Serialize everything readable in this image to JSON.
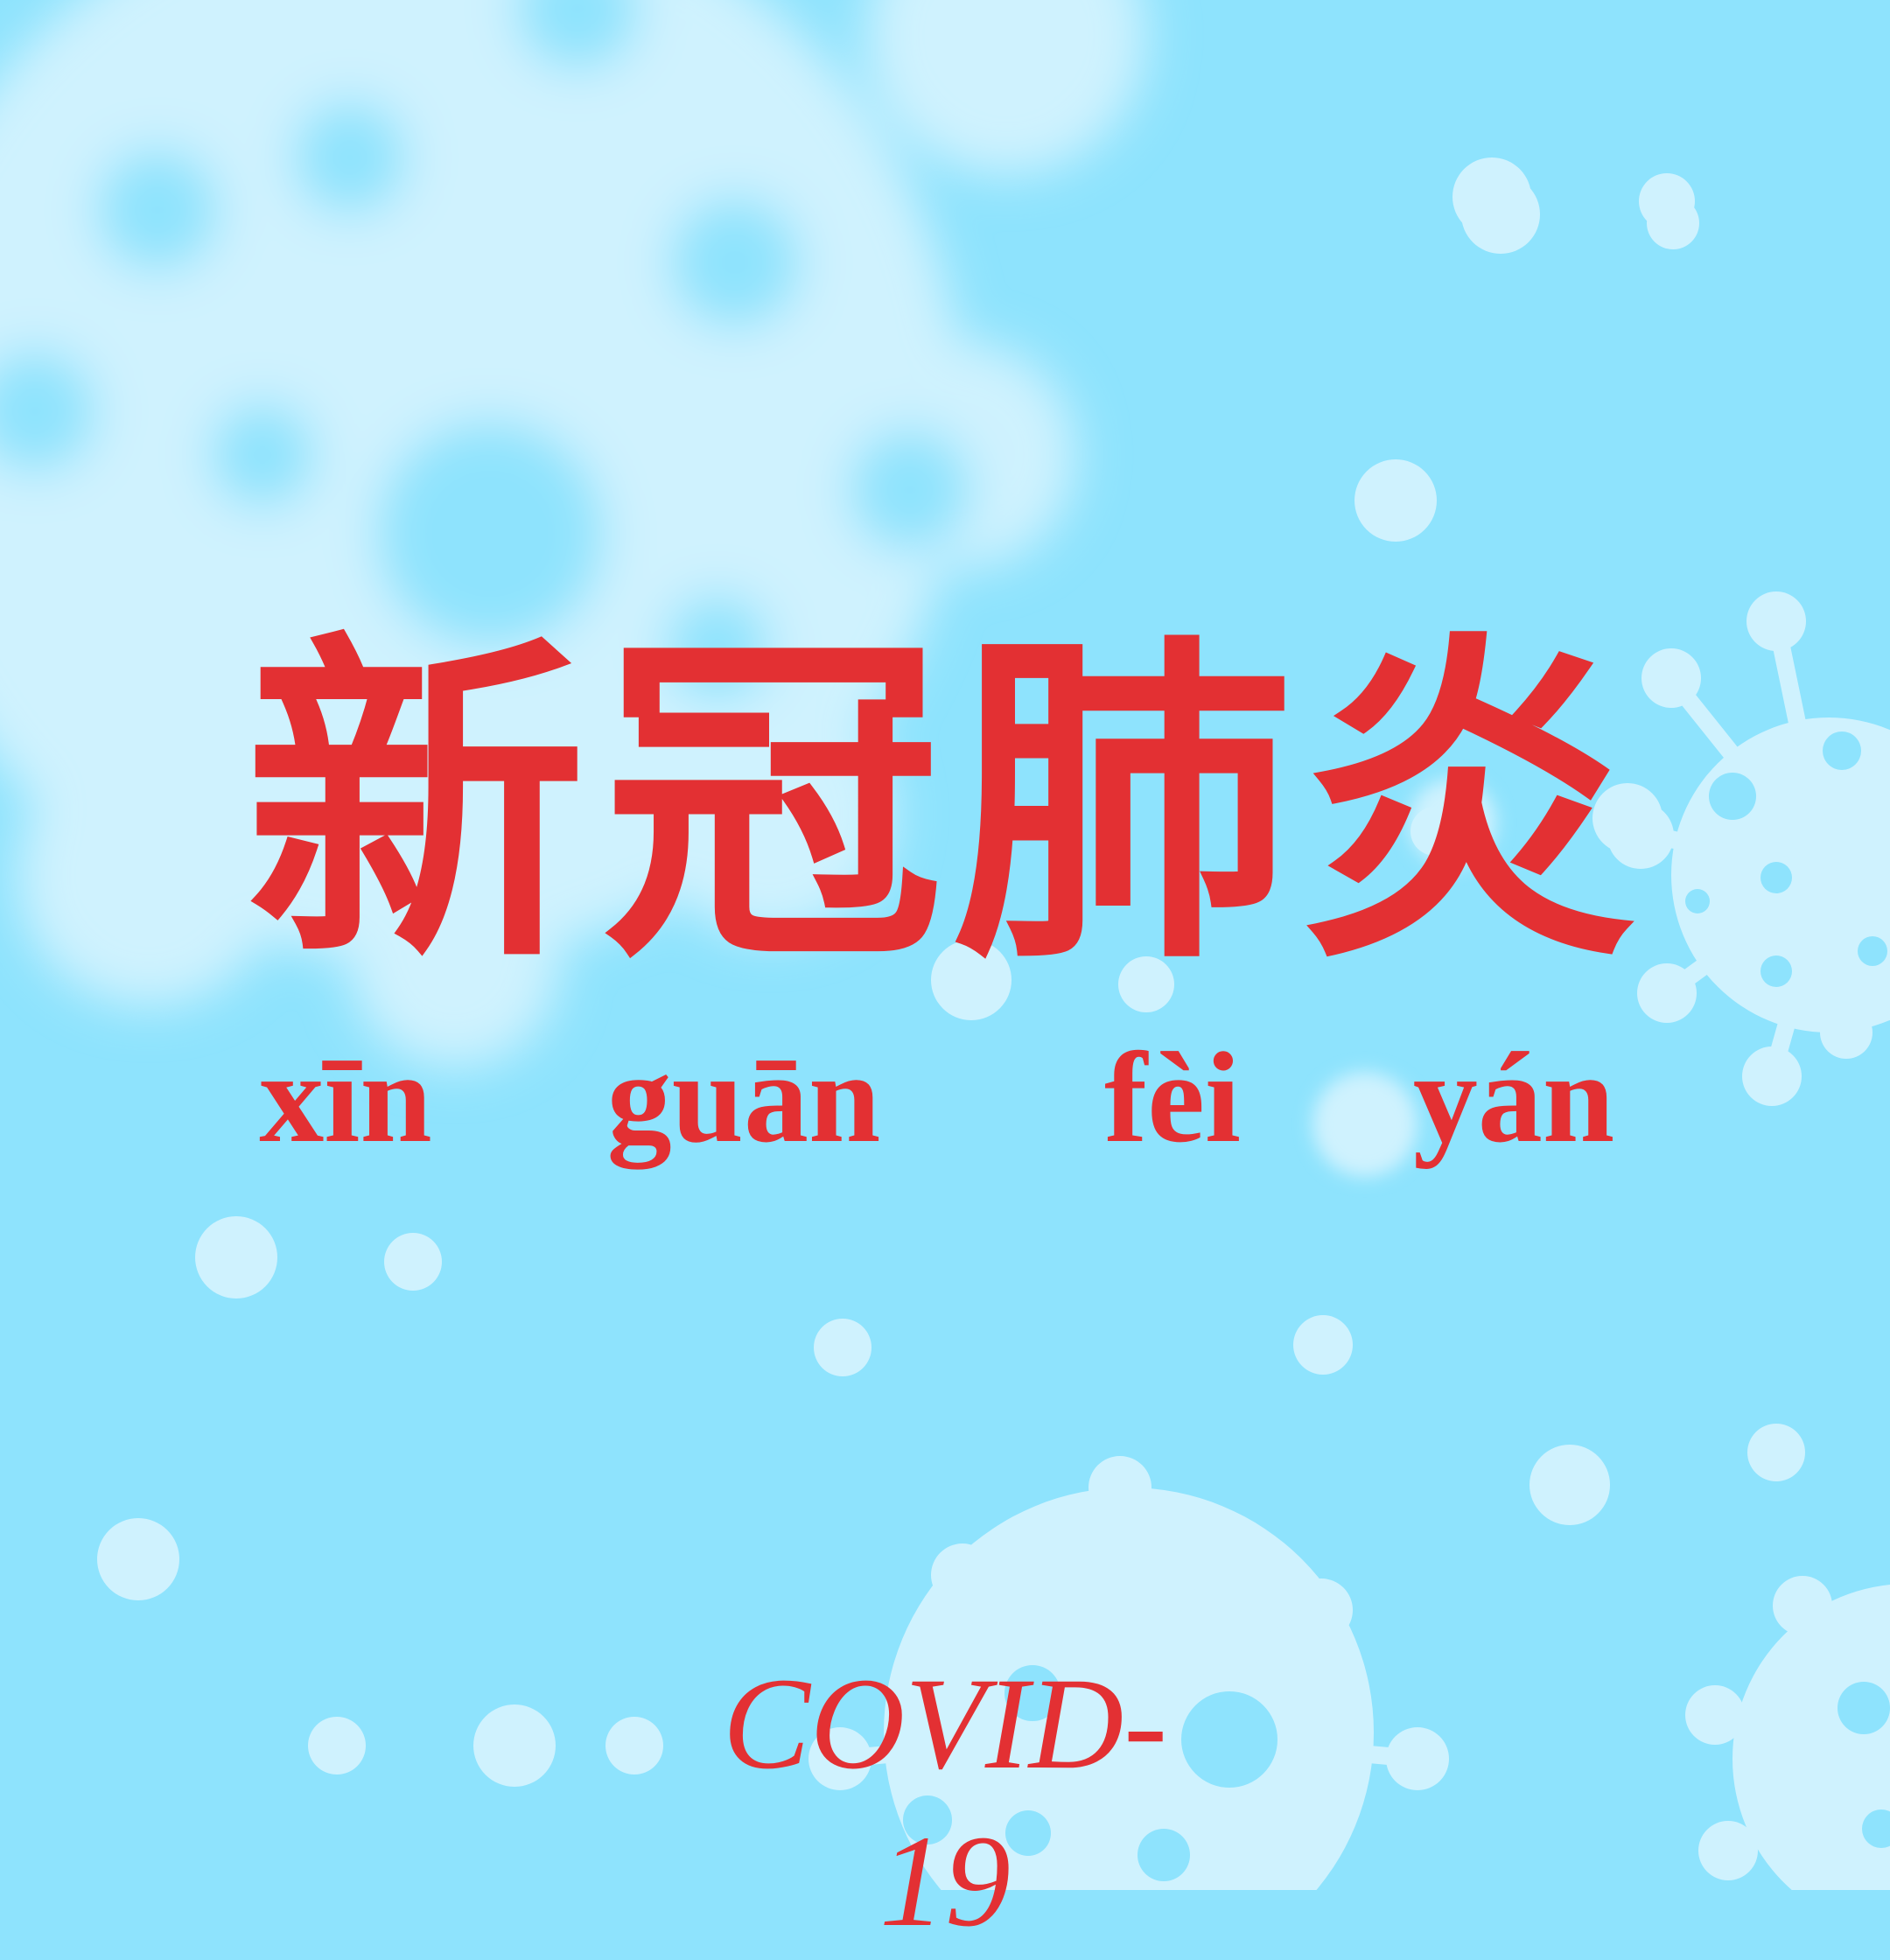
{
  "title": {
    "characters": [
      "新",
      "冠",
      "肺",
      "炎"
    ],
    "pinyin": [
      "xīn",
      "guān",
      "fèi",
      "yán"
    ]
  },
  "label": "COVID-19",
  "colors": {
    "background": "#8ee3fd",
    "virus_light": "#cff2fe",
    "text": "#e33033"
  },
  "decorations": [
    "virus-icon",
    "droplet-icon"
  ]
}
